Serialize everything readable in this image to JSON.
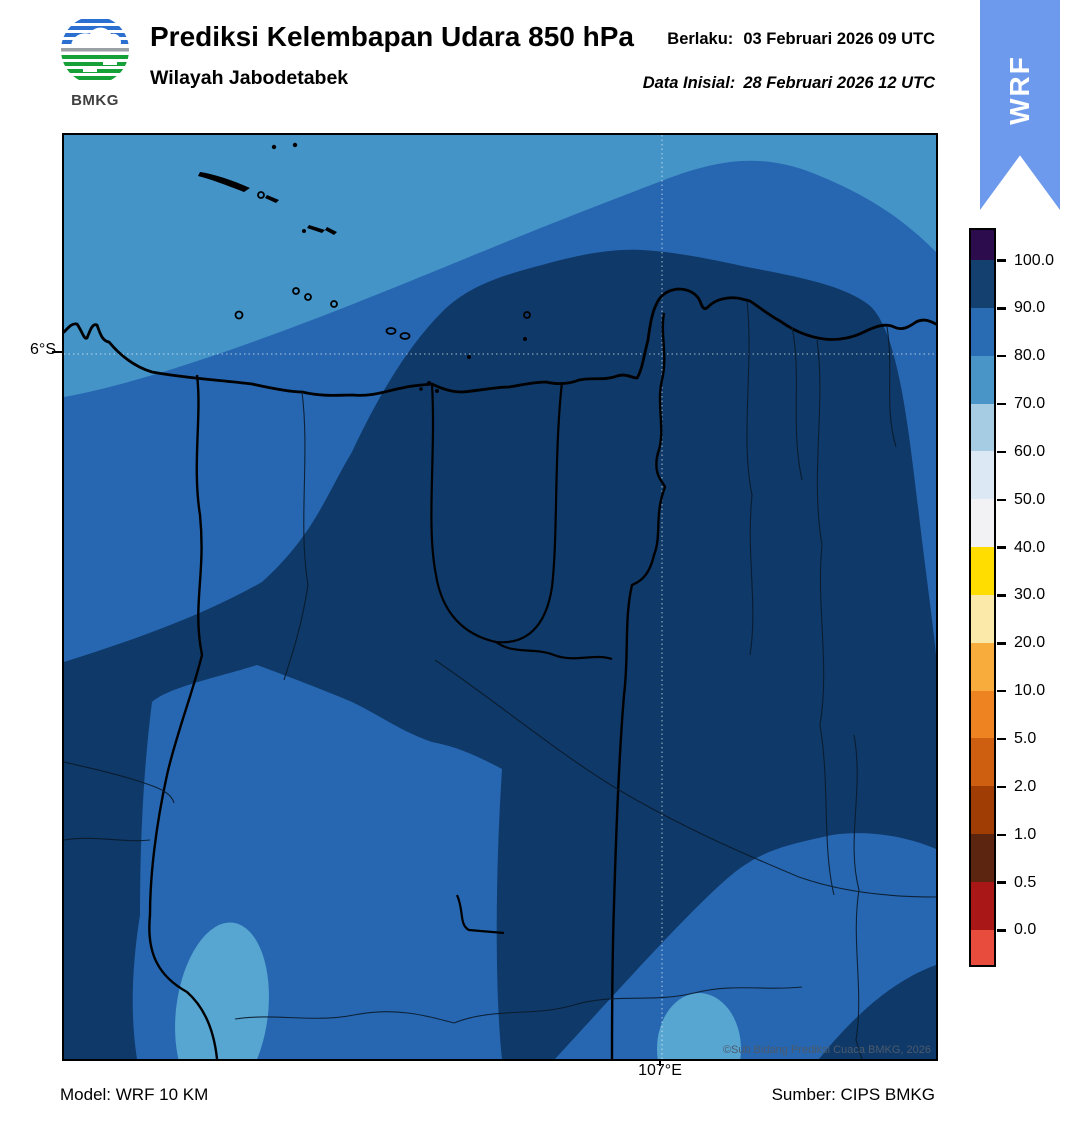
{
  "header": {
    "logo": {
      "text": "BMKG"
    },
    "title": "Prediksi Kelembapan Udara 850 hPa",
    "region": "Wilayah Jabodetabek",
    "valid": {
      "label": "Berlaku:",
      "value": "03 Februari 2026 09 UTC"
    },
    "initial": {
      "label": "Data Inisial:",
      "value": "28 Februari 2026 12 UTC"
    },
    "ribbon": {
      "label": "WRF",
      "color": "#6D9AEC"
    }
  },
  "map": {
    "lat_tick": "6°S",
    "lon_tick": "107°E",
    "copyright": "©Sub Bidang Prediksi Cuaca BMKG, 2026",
    "colors": {
      "humidity_70_80": "#4494C8",
      "humidity_80_90": "#2767B1",
      "humidity_90_100": "#0F3968",
      "blob_70_80": "#57A5D1",
      "coast": "#000000",
      "grid": "#FFFFFF"
    }
  },
  "colorbar": {
    "tick_labels": [
      "100.0",
      "90.0",
      "80.0",
      "70.0",
      "60.0",
      "50.0",
      "40.0",
      "30.0",
      "20.0",
      "10.0",
      "5.0",
      "2.0",
      "1.0",
      "0.5",
      "0.0"
    ],
    "segment_colors": [
      "#2D0C4E",
      "#14406F",
      "#2A6CB3",
      "#4995C8",
      "#A6CCE4",
      "#DCE9F5",
      "#F2F2F4",
      "#FFDD00",
      "#FBE9A9",
      "#F7AC3C",
      "#EE8322",
      "#CE5F10",
      "#A03D04",
      "#5B2510",
      "#AA1717",
      "#E84C3D"
    ]
  },
  "footer": {
    "model": "Model: WRF 10 KM",
    "source": "Sumber: CIPS BMKG"
  },
  "chart_data": {
    "type": "heatmap",
    "title": "Prediksi Kelembapan Udara 850 hPa",
    "region": "Wilayah Jabodetabek",
    "variable": "Kelembapan udara (relative humidity) 850 hPa, %",
    "valid_time": "03 Februari 2026 09 UTC",
    "initial_time": "28 Februari 2026 12 UTC",
    "model": "WRF 10 KM",
    "source": "CIPS BMKG",
    "contour_levels": [
      0.0,
      0.5,
      1.0,
      2.0,
      5.0,
      10.0,
      20.0,
      30.0,
      40.0,
      50.0,
      60.0,
      70.0,
      80.0,
      90.0,
      100.0
    ],
    "visible_classes_percent": [
      "70-80",
      "80-90",
      "90-100"
    ],
    "gridline_labels": {
      "latitude": "6°S",
      "longitude": "107°E"
    },
    "legend_position": "right"
  }
}
